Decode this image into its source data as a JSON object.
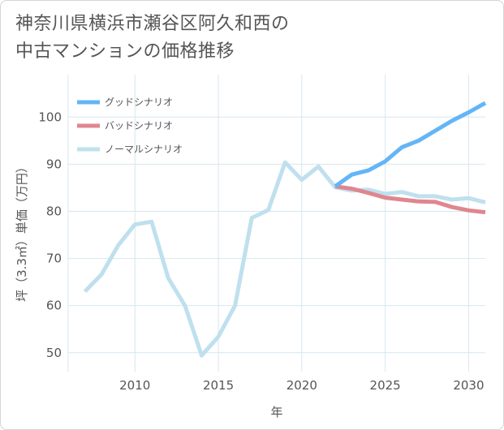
{
  "title": {
    "line1": "神奈川県横浜市瀬谷区阿久和西の",
    "line2": "中古マンションの価格推移"
  },
  "colors": {
    "good": "#64b5f6",
    "bad": "#e0868e",
    "normal": "#bfe0ee",
    "grid": "#d6e7ef",
    "text": "#555555"
  },
  "chart_data": {
    "type": "line",
    "title": "神奈川県横浜市瀬谷区阿久和西の中古マンションの価格推移",
    "xlabel": "年",
    "ylabel": "坪（3.3㎡）単価（万円）",
    "xlim": [
      2006,
      2031
    ],
    "ylim": [
      46,
      109
    ],
    "x_ticks": [
      2010,
      2015,
      2020,
      2025,
      2030
    ],
    "y_ticks": [
      50,
      60,
      70,
      80,
      90,
      100
    ],
    "x_tick_labels": [
      "2010",
      "2015",
      "2020",
      "2025",
      "2030"
    ],
    "y_tick_labels": [
      "50",
      "60",
      "70",
      "80",
      "90",
      "100"
    ],
    "grid": true,
    "legend_position": "top-left",
    "series": [
      {
        "name": "グッドシナリオ",
        "key": "good",
        "x": [
          2022,
          2023,
          2024,
          2025,
          2026,
          2027,
          2028,
          2029,
          2030,
          2031
        ],
        "y": [
          85.3,
          87.8,
          88.7,
          90.6,
          93.6,
          95.0,
          97.1,
          99.2,
          101.0,
          103.0
        ]
      },
      {
        "name": "バッドシナリオ",
        "key": "bad",
        "x": [
          2022,
          2023,
          2024,
          2025,
          2026,
          2027,
          2028,
          2029,
          2030,
          2031
        ],
        "y": [
          85.3,
          84.8,
          83.9,
          82.9,
          82.5,
          82.1,
          82.0,
          80.9,
          80.2,
          79.8
        ]
      },
      {
        "name": "ノーマルシナリオ",
        "key": "normal",
        "x": [
          2007,
          2008,
          2009,
          2010,
          2011,
          2012,
          2013,
          2014,
          2015,
          2016,
          2017,
          2018,
          2019,
          2020,
          2021,
          2022,
          2023,
          2024,
          2025,
          2026,
          2027,
          2028,
          2029,
          2030,
          2031
        ],
        "y": [
          63.0,
          66.6,
          72.8,
          77.2,
          77.8,
          65.8,
          60.0,
          49.4,
          53.4,
          60.0,
          78.6,
          80.3,
          90.4,
          86.7,
          89.5,
          85.1,
          84.4,
          84.6,
          83.7,
          84.1,
          83.2,
          83.2,
          82.5,
          82.8,
          81.9
        ]
      }
    ]
  }
}
